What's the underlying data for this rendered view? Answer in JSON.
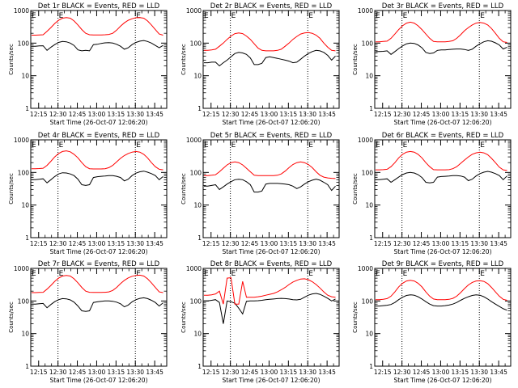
{
  "chart_data": {
    "type": "line",
    "layout": "3x3 grid of panels",
    "y_scale": "log",
    "ylim": [
      1,
      1000
    ],
    "y_ticks": [
      "1",
      "10",
      "100",
      "1000"
    ],
    "ylabel": "Counts/sec",
    "x_ticks": [
      "12:15",
      "12:30",
      "12:45",
      "13:00",
      "13:15",
      "13:30",
      "13:45"
    ],
    "xlabel": "Start Time (26-Oct-07 12:06:20)",
    "vertical_marker_times": [
      "12:30",
      "13:30"
    ],
    "flag_text": "E",
    "colors": {
      "events": "#000000",
      "lld": "#ff0000",
      "marker": "#000000"
    },
    "x_hours": [
      0.0,
      0.05,
      0.1,
      0.15,
      0.2,
      0.25,
      0.3,
      0.35,
      0.4,
      0.45,
      0.5,
      0.55,
      0.6,
      0.65,
      0.7,
      0.75,
      0.8,
      0.85,
      0.9,
      0.95,
      1.0,
      1.05,
      1.1,
      1.15,
      1.2,
      1.25,
      1.3,
      1.35,
      1.4,
      1.45,
      1.5,
      1.55,
      1.6,
      1.65,
      1.7
    ],
    "panels": [
      {
        "title": "Det 1r BLACK = Events, RED = LLD",
        "series": [
          {
            "name": "Events",
            "values": [
              80,
              80,
              82,
              83,
              60,
              75,
              90,
              105,
              112,
              110,
              100,
              85,
              62,
              58,
              60,
              58,
              90,
              92,
              98,
              102,
              103,
              100,
              92,
              80,
              65,
              72,
              90,
              105,
              115,
              120,
              112,
              100,
              85,
              72,
              85
            ]
          },
          {
            "name": "LLD",
            "values": [
              175,
              175,
              178,
              180,
              230,
              300,
              400,
              500,
              580,
              610,
              580,
              480,
              360,
              260,
              200,
              180,
              178,
              178,
              178,
              180,
              185,
              200,
              250,
              330,
              420,
              500,
              560,
              600,
              610,
              580,
              480,
              360,
              260,
              190,
              175
            ]
          }
        ]
      },
      {
        "title": "Det 2r BLACK = Events, RED = LLD",
        "series": [
          {
            "name": "Events",
            "values": [
              25,
              25,
              26,
              26,
              20,
              25,
              30,
              38,
              48,
              52,
              50,
              45,
              35,
              22,
              22,
              24,
              36,
              38,
              36,
              34,
              32,
              30,
              28,
              25,
              26,
              32,
              40,
              48,
              55,
              60,
              58,
              52,
              42,
              30,
              40
            ]
          },
          {
            "name": "LLD",
            "values": [
              60,
              60,
              62,
              65,
              80,
              100,
              130,
              165,
              195,
              205,
              195,
              165,
              130,
              95,
              70,
              60,
              58,
              58,
              58,
              60,
              65,
              80,
              100,
              130,
              160,
              190,
              205,
              210,
              200,
              175,
              140,
              100,
              75,
              60,
              58
            ]
          }
        ]
      },
      {
        "title": "Det 3r BLACK = Events, RED = LLD",
        "series": [
          {
            "name": "Events",
            "values": [
              55,
              55,
              56,
              58,
              45,
              55,
              68,
              82,
              95,
              100,
              98,
              88,
              72,
              52,
              48,
              50,
              60,
              62,
              62,
              64,
              65,
              66,
              66,
              64,
              60,
              65,
              80,
              95,
              110,
              118,
              114,
              102,
              88,
              66,
              75
            ]
          },
          {
            "name": "LLD",
            "values": [
              110,
              110,
              112,
              115,
              140,
              190,
              260,
              340,
              410,
              440,
              410,
              340,
              260,
              190,
              140,
              112,
              110,
              110,
              110,
              112,
              118,
              140,
              180,
              240,
              300,
              360,
              410,
              430,
              410,
              360,
              280,
              200,
              140,
              110,
              105
            ]
          }
        ]
      },
      {
        "title": "Det 4r BLACK = Events, RED = LLD",
        "series": [
          {
            "name": "Events",
            "values": [
              60,
              60,
              62,
              64,
              48,
              60,
              75,
              90,
              98,
              96,
              90,
              80,
              62,
              42,
              40,
              42,
              70,
              74,
              76,
              78,
              80,
              80,
              76,
              70,
              55,
              62,
              80,
              95,
              105,
              110,
              102,
              92,
              80,
              60,
              75
            ]
          },
          {
            "name": "LLD",
            "values": [
              130,
              130,
              132,
              135,
              165,
              220,
              300,
              380,
              440,
              460,
              430,
              360,
              280,
              200,
              150,
              130,
              128,
              128,
              128,
              130,
              140,
              165,
              210,
              270,
              330,
              380,
              420,
              440,
              420,
              360,
              280,
              200,
              150,
              125,
              120
            ]
          }
        ]
      },
      {
        "title": "Det 5r BLACK = Events, RED = LLD",
        "series": [
          {
            "name": "Events",
            "values": [
              38,
              38,
              40,
              42,
              30,
              36,
              44,
              52,
              60,
              62,
              60,
              52,
              42,
              25,
              25,
              27,
              44,
              46,
              46,
              46,
              45,
              44,
              42,
              38,
              32,
              36,
              44,
              52,
              58,
              62,
              58,
              50,
              42,
              28,
              38
            ]
          },
          {
            "name": "LLD",
            "values": [
              80,
              80,
              82,
              85,
              105,
              135,
              170,
              200,
              210,
              200,
              170,
              135,
              105,
              82,
              80,
              80,
              80,
              80,
              80,
              82,
              90,
              110,
              140,
              175,
              200,
              210,
              200,
              175,
              140,
              105,
              82,
              72,
              68,
              66,
              65
            ]
          }
        ]
      },
      {
        "title": "Det 6r BLACK = Events, RED = LLD",
        "series": [
          {
            "name": "Events",
            "values": [
              60,
              60,
              62,
              64,
              50,
              60,
              72,
              86,
              96,
              100,
              96,
              86,
              70,
              50,
              48,
              50,
              72,
              75,
              76,
              78,
              80,
              80,
              78,
              72,
              56,
              62,
              78,
              92,
              102,
              108,
              102,
              92,
              80,
              60,
              78
            ]
          },
          {
            "name": "LLD",
            "values": [
              120,
              120,
              122,
              125,
              150,
              200,
              280,
              360,
              420,
              440,
              420,
              360,
              280,
              200,
              150,
              122,
              120,
              120,
              120,
              122,
              130,
              150,
              190,
              240,
              300,
              360,
              400,
              420,
              400,
              350,
              270,
              200,
              145,
              120,
              115
            ]
          }
        ]
      },
      {
        "title": "Det 7r BLACK = Events, RED = LLD",
        "series": [
          {
            "name": "Events",
            "values": [
              80,
              80,
              82,
              84,
              62,
              78,
              95,
              110,
              118,
              116,
              108,
              92,
              70,
              50,
              48,
              50,
              90,
              94,
              98,
              100,
              100,
              98,
              92,
              82,
              66,
              75,
              94,
              110,
              120,
              125,
              118,
              105,
              90,
              70,
              88
            ]
          },
          {
            "name": "LLD",
            "values": [
              180,
              180,
              182,
              185,
              230,
              300,
              400,
              500,
              580,
              610,
              580,
              480,
              360,
              260,
              200,
              185,
              183,
              183,
              183,
              185,
              190,
              210,
              260,
              340,
              430,
              510,
              570,
              610,
              620,
              580,
              480,
              360,
              260,
              190,
              180
            ]
          }
        ]
      },
      {
        "title": "Det 8r BLACK = Events, RED = LLD",
        "series": [
          {
            "name": "Events",
            "values": [
              100,
              100,
              105,
              110,
              90,
              20,
              100,
              95,
              85,
              60,
              40,
              98,
              100,
              100,
              102,
              105,
              110,
              112,
              115,
              118,
              120,
              118,
              115,
              110,
              108,
              112,
              130,
              150,
              165,
              170,
              160,
              140,
              120,
              100,
              115
            ]
          },
          {
            "name": "LLD",
            "values": [
              150,
              150,
              155,
              165,
              200,
              80,
              500,
              520,
              80,
              80,
              400,
              130,
              130,
              130,
              135,
              140,
              150,
              160,
              170,
              190,
              220,
              260,
              320,
              380,
              430,
              470,
              480,
              450,
              390,
              320,
              250,
              190,
              150,
              135,
              130
            ]
          }
        ]
      },
      {
        "title": "Det 9r BLACK = Events, RED = LLD",
        "series": [
          {
            "name": "Events",
            "values": [
              70,
              70,
              72,
              74,
              78,
              90,
              110,
              130,
              148,
              155,
              150,
              135,
              115,
              95,
              80,
              72,
              70,
              70,
              72,
              75,
              80,
              90,
              105,
              120,
              135,
              148,
              155,
              150,
              135,
              115,
              95,
              80,
              68,
              58,
              52
            ]
          },
          {
            "name": "LLD",
            "values": [
              110,
              110,
              112,
              118,
              140,
              190,
              270,
              350,
              410,
              430,
              410,
              350,
              270,
              190,
              140,
              115,
              110,
              110,
              110,
              112,
              120,
              140,
              180,
              240,
              310,
              370,
              410,
              420,
              400,
              340,
              260,
              190,
              140,
              112,
              105
            ]
          }
        ]
      }
    ]
  }
}
